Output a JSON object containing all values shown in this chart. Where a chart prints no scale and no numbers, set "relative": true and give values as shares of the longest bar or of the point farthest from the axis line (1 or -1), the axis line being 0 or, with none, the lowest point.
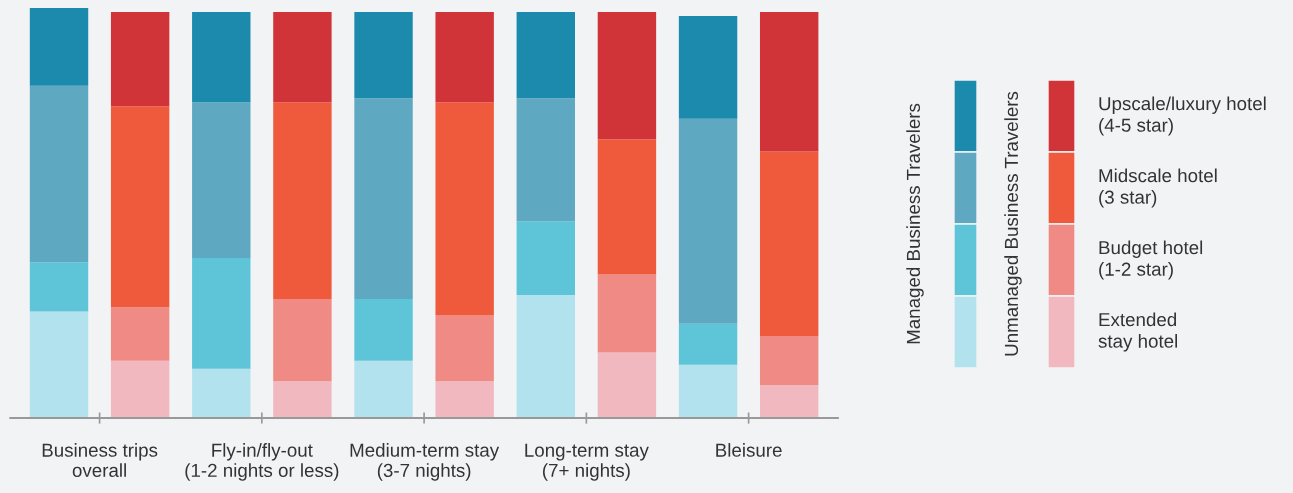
{
  "chart_data": {
    "type": "bar",
    "stacked": true,
    "relative": true,
    "grid": false,
    "legend": "right",
    "categories": [
      "Business trips\noverall",
      null,
      "Fly-in/fly-out\n(1-2 nights or less)",
      null,
      "Medium-term stay\n(3-7 nights)",
      null,
      "Long-term stay\n(7+ nights)",
      null,
      "Bleisure",
      null
    ],
    "annotations": [
      "Managed Business Travelers",
      "Unmanaged Business Travelers"
    ],
    "series": [
      {
        "name": "Extended\nstay hotel",
        "colors": [
          "#b3e2ef",
          "#f2b8c0",
          "#b3e2ef",
          "#f2b8c0",
          "#b3e2ef",
          "#f2b8c0",
          "#b3e2ef",
          "#f2b8c0",
          "#b3e2ef",
          "#f2b8c0"
        ],
        "values": [
          0.26,
          0.14,
          0.12,
          0.09,
          0.14,
          0.09,
          0.3,
          0.16,
          0.13,
          0.08
        ]
      },
      {
        "name": "Budget hotel\n(1-2 star)",
        "colors": [
          "#5ec5d8",
          "#f08a84",
          "#5ec5d8",
          "#f08a84",
          "#5ec5d8",
          "#f08a84",
          "#5ec5d8",
          "#f08a84",
          "#5ec5d8",
          "#f08a84"
        ],
        "values": [
          0.12,
          0.13,
          0.27,
          0.2,
          0.15,
          0.16,
          0.18,
          0.19,
          0.1,
          0.12
        ]
      },
      {
        "name": "Midscale hotel\n(3 star)",
        "colors": [
          "#5fa8c2",
          "#f05a3c",
          "#5fa8c2",
          "#f05a3c",
          "#5fa8c2",
          "#f05a3c",
          "#5fa8c2",
          "#f05a3c",
          "#5fa8c2",
          "#f05a3c"
        ],
        "values": [
          0.43,
          0.49,
          0.38,
          0.48,
          0.49,
          0.52,
          0.3,
          0.33,
          0.5,
          0.45
        ]
      },
      {
        "name": "Upscale/luxury hotel\n(4-5 star)",
        "colors": [
          "#1b8aad",
          "#d13438",
          "#1b8aad",
          "#d13438",
          "#1b8aad",
          "#d13438",
          "#1b8aad",
          "#d13438",
          "#1b8aad",
          "#d13438"
        ],
        "values": [
          0.19,
          0.23,
          0.22,
          0.22,
          0.21,
          0.22,
          0.21,
          0.31,
          0.25,
          0.34
        ]
      }
    ]
  }
}
